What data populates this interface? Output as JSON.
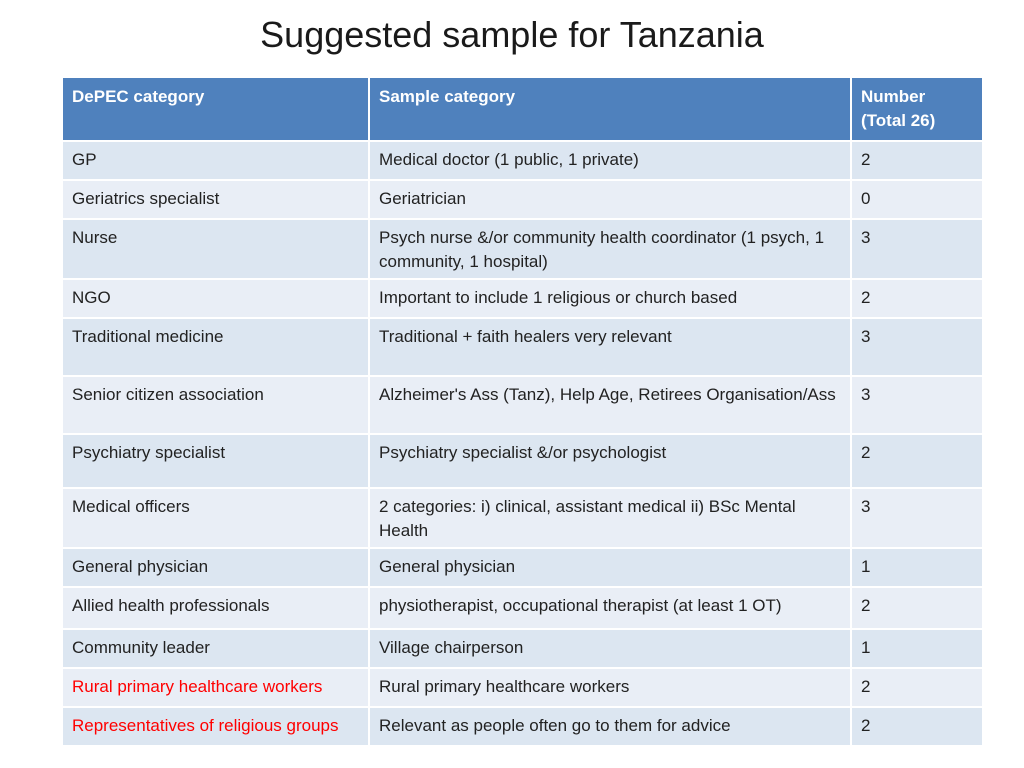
{
  "title": "Suggested sample for Tanzania",
  "columns": [
    "DePEC category",
    "Sample category",
    "Number (Total 26)"
  ],
  "header_number_line1": "Number",
  "header_number_line2": "(Total 26)",
  "rows": [
    {
      "depec": "GP",
      "sample": "Medical doctor (1 public, 1 private)",
      "number": "2"
    },
    {
      "depec": "Geriatrics specialist",
      "sample": "Geriatrician",
      "number": "0"
    },
    {
      "depec": "Nurse",
      "sample": "Psych nurse &/or community health coordinator (1 psych, 1 community, 1 hospital)",
      "number": "3"
    },
    {
      "depec": "NGO",
      "sample": "Important to include 1 religious or church based",
      "number": "2"
    },
    {
      "depec": "Traditional medicine",
      "sample": "Traditional + faith healers very relevant",
      "number": "3"
    },
    {
      "depec": "Senior citizen association",
      "sample": "Alzheimer's Ass (Tanz), Help Age, Retirees Organisation/Ass",
      "number": "3"
    },
    {
      "depec": "Psychiatry specialist",
      "sample": "Psychiatry specialist &/or psychologist",
      "number": "2"
    },
    {
      "depec": "Medical officers",
      "sample": "2 categories: i) clinical, assistant medical ii) BSc Mental Health",
      "number": "3"
    },
    {
      "depec": "General physician",
      "sample": "General physician",
      "number": "1"
    },
    {
      "depec": "Allied health professionals",
      "sample": "physiotherapist, occupational therapist (at least 1 OT)",
      "number": "2"
    },
    {
      "depec": "Community leader",
      "sample": "Village chairperson",
      "number": "1"
    },
    {
      "depec": "Rural primary healthcare workers",
      "sample": "Rural primary healthcare workers",
      "number": "2",
      "highlight": true
    },
    {
      "depec": "Representatives of religious groups",
      "sample": "Relevant as people often go to them for advice",
      "number": "2",
      "highlight": true
    }
  ],
  "colors": {
    "header_bg": "#4f81bd",
    "row_bg_light": "#dce6f1",
    "row_bg_alt": "#e9eef6",
    "highlight_text": "#ff0000"
  }
}
